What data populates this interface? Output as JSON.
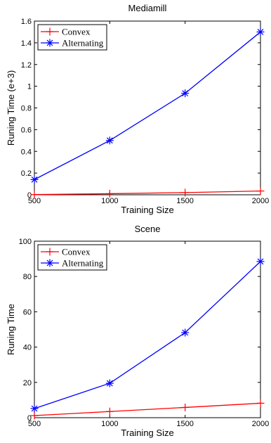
{
  "chart_data": [
    {
      "type": "line",
      "title": "Mediamill",
      "xlabel": "Training Size",
      "ylabel": "Runing Time (e+3)",
      "x": [
        500,
        1000,
        1500,
        2000
      ],
      "xlim": [
        500,
        2000
      ],
      "ylim": [
        0,
        1.6
      ],
      "xticks": [
        500,
        1000,
        1500,
        2000
      ],
      "xtick_labels": [
        "500",
        "1000",
        "1500",
        "2000"
      ],
      "yticks": [
        0,
        0.2,
        0.4,
        0.6,
        0.8,
        1,
        1.2,
        1.4,
        1.6
      ],
      "ytick_labels": [
        "0",
        "0.2",
        "0.4",
        "0.6",
        "0.8",
        "1",
        "1.2",
        "1.4",
        "1.6"
      ],
      "grid": false,
      "legend": "top-left",
      "series": [
        {
          "name": "Convex",
          "values": [
            0.002,
            0.01,
            0.02,
            0.035
          ],
          "color": "#ff0000",
          "marker": "plus"
        },
        {
          "name": "Alternating",
          "values": [
            0.14,
            0.5,
            0.935,
            1.5
          ],
          "color": "#0000ff",
          "marker": "star"
        }
      ]
    },
    {
      "type": "line",
      "title": "Scene",
      "xlabel": "Training Size",
      "ylabel": "Runing Time",
      "x": [
        500,
        1000,
        1500,
        2000
      ],
      "xlim": [
        500,
        2000
      ],
      "ylim": [
        0,
        100
      ],
      "xticks": [
        500,
        1000,
        1500,
        2000
      ],
      "xtick_labels": [
        "500",
        "1000",
        "1500",
        "2000"
      ],
      "yticks": [
        0,
        20,
        40,
        60,
        80,
        100
      ],
      "ytick_labels": [
        "0",
        "20",
        "40",
        "60",
        "80",
        "100"
      ],
      "grid": false,
      "legend": "top-left",
      "series": [
        {
          "name": "Convex",
          "values": [
            1.2,
            3.5,
            5.8,
            8.2
          ],
          "color": "#ff0000",
          "marker": "plus"
        },
        {
          "name": "Alternating",
          "values": [
            5.2,
            19.5,
            48.2,
            88.5
          ],
          "color": "#0000ff",
          "marker": "star"
        }
      ]
    }
  ]
}
